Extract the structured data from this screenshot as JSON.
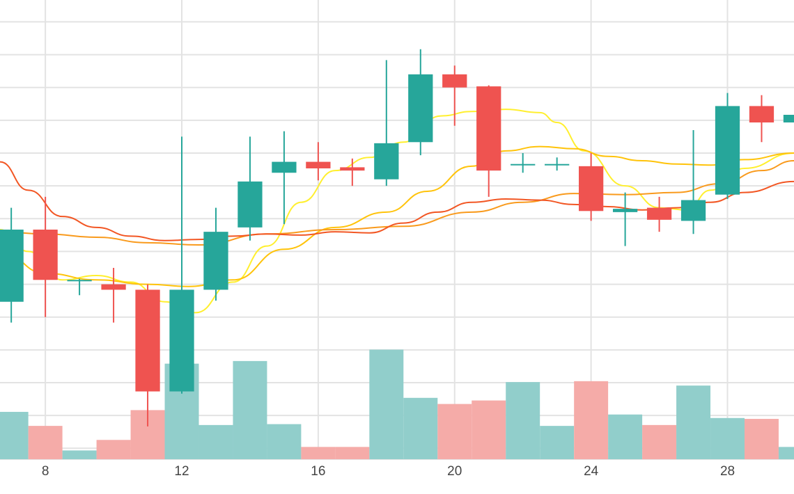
{
  "chart_data": {
    "type": "candlestick",
    "x_ticks": [
      "8",
      "12",
      "16",
      "20",
      "24",
      "28"
    ],
    "x_tick_values": [
      8,
      12,
      16,
      20,
      24,
      28
    ],
    "x_range": [
      6.67,
      29.95
    ],
    "price_range": [
      19.0,
      61.0
    ],
    "volume_range": [
      0,
      100
    ],
    "grid": true,
    "legend": "none",
    "candles": [
      {
        "x": 7,
        "open": 33.4,
        "close": 40.0,
        "high": 42.0,
        "low": 31.5,
        "volume": 54
      },
      {
        "x": 8,
        "open": 40.0,
        "close": 35.4,
        "high": 43.0,
        "low": 32.0,
        "volume": 38
      },
      {
        "x": 9,
        "open": 35.4,
        "close": 35.4,
        "high": 35.5,
        "low": 34.0,
        "volume": 10
      },
      {
        "x": 10,
        "open": 35.0,
        "close": 34.5,
        "high": 36.5,
        "low": 31.5,
        "volume": 22
      },
      {
        "x": 11,
        "open": 34.5,
        "close": 25.2,
        "high": 35.0,
        "low": 22.0,
        "volume": 56
      },
      {
        "x": 12,
        "open": 25.2,
        "close": 34.5,
        "high": 48.5,
        "low": 25.0,
        "volume": 109
      },
      {
        "x": 13,
        "open": 34.5,
        "close": 39.8,
        "high": 42.0,
        "low": 33.5,
        "volume": 39
      },
      {
        "x": 14,
        "open": 40.2,
        "close": 44.4,
        "high": 48.5,
        "low": 39.0,
        "volume": 112
      },
      {
        "x": 15,
        "open": 45.2,
        "close": 46.2,
        "high": 49.0,
        "low": 40.5,
        "volume": 40
      },
      {
        "x": 16,
        "open": 46.2,
        "close": 45.6,
        "high": 48.0,
        "low": 44.5,
        "volume": 14
      },
      {
        "x": 17,
        "open": 45.7,
        "close": 45.4,
        "high": 46.5,
        "low": 44.0,
        "volume": 14
      },
      {
        "x": 18,
        "open": 44.6,
        "close": 47.9,
        "high": 55.5,
        "low": 44.0,
        "volume": 125
      },
      {
        "x": 19,
        "open": 48.0,
        "close": 54.2,
        "high": 56.5,
        "low": 46.8,
        "volume": 70
      },
      {
        "x": 20,
        "open": 54.2,
        "close": 53.0,
        "high": 55.0,
        "low": 49.5,
        "volume": 63
      },
      {
        "x": 21,
        "open": 53.1,
        "close": 45.4,
        "high": 53.2,
        "low": 43.0,
        "volume": 67
      },
      {
        "x": 22,
        "open": 46.0,
        "close": 46.0,
        "high": 47.0,
        "low": 45.2,
        "volume": 88
      },
      {
        "x": 23,
        "open": 46.0,
        "close": 46.0,
        "high": 46.6,
        "low": 45.4,
        "volume": 38
      },
      {
        "x": 24,
        "open": 45.8,
        "close": 41.7,
        "high": 47.0,
        "low": 40.8,
        "volume": 89
      },
      {
        "x": 25,
        "open": 41.6,
        "close": 41.9,
        "high": 43.4,
        "low": 38.5,
        "volume": 51
      },
      {
        "x": 26,
        "open": 42.0,
        "close": 40.9,
        "high": 43.0,
        "low": 39.8,
        "volume": 39
      },
      {
        "x": 27,
        "open": 40.8,
        "close": 42.7,
        "high": 49.1,
        "low": 39.6,
        "volume": 84
      },
      {
        "x": 28,
        "open": 43.2,
        "close": 51.3,
        "high": 52.5,
        "low": 42.8,
        "volume": 47
      },
      {
        "x": 29,
        "open": 51.3,
        "close": 49.8,
        "high": 52.3,
        "low": 48.0,
        "volume": 46
      },
      {
        "x": 30,
        "open": 49.8,
        "close": 50.5,
        "high": 51.8,
        "low": 49.0,
        "volume": 14
      }
    ],
    "moving_averages": [
      {
        "color": "#ffef2e",
        "points": [
          [
            6.67,
            40.0
          ],
          [
            7.5,
            38.0
          ],
          [
            8.5,
            35.4
          ],
          [
            9.5,
            35.8
          ],
          [
            10.5,
            35.2
          ],
          [
            11.5,
            33.4
          ],
          [
            12.4,
            32.4
          ],
          [
            13.5,
            35.2
          ],
          [
            14.5,
            38.5
          ],
          [
            15.5,
            42.5
          ],
          [
            16.5,
            45.4
          ],
          [
            17.5,
            46.6
          ],
          [
            18.5,
            48.0
          ],
          [
            19.6,
            50.4
          ],
          [
            20.5,
            50.8
          ],
          [
            21.5,
            51.0
          ],
          [
            22.5,
            50.7
          ],
          [
            23.0,
            49.8
          ],
          [
            23.8,
            47.2
          ],
          [
            25.0,
            44.0
          ],
          [
            26.0,
            42.0
          ],
          [
            26.8,
            41.8
          ],
          [
            27.5,
            43.6
          ],
          [
            28.5,
            45.6
          ],
          [
            29.95,
            47.0
          ]
        ]
      },
      {
        "color": "#ffc30a",
        "points": [
          [
            6.67,
            38.0
          ],
          [
            8.0,
            36.0
          ],
          [
            9.5,
            35.4
          ],
          [
            11.0,
            35.0
          ],
          [
            12.2,
            34.8
          ],
          [
            13.5,
            35.4
          ],
          [
            15.0,
            38.2
          ],
          [
            16.5,
            40.2
          ],
          [
            18.0,
            41.6
          ],
          [
            19.2,
            43.5
          ],
          [
            20.5,
            45.8
          ],
          [
            21.5,
            47.2
          ],
          [
            22.5,
            47.6
          ],
          [
            23.5,
            47.4
          ],
          [
            24.5,
            46.7
          ],
          [
            25.5,
            46.3
          ],
          [
            26.5,
            46.0
          ],
          [
            27.5,
            45.9
          ],
          [
            28.5,
            46.4
          ],
          [
            29.95,
            47.0
          ]
        ]
      },
      {
        "color": "#f99a1c",
        "points": [
          [
            6.67,
            39.8
          ],
          [
            8.0,
            39.6
          ],
          [
            9.5,
            39.3
          ],
          [
            11.0,
            38.8
          ],
          [
            12.5,
            38.6
          ],
          [
            14.5,
            39.6
          ],
          [
            16.5,
            40.0
          ],
          [
            18.5,
            40.3
          ],
          [
            20.5,
            41.6
          ],
          [
            22.0,
            42.5
          ],
          [
            23.5,
            43.3
          ],
          [
            25.0,
            43.2
          ],
          [
            26.5,
            43.4
          ],
          [
            27.8,
            44.2
          ],
          [
            29.0,
            45.4
          ],
          [
            29.95,
            46.3
          ]
        ]
      },
      {
        "color": "#f25623",
        "points": [
          [
            6.67,
            46.2
          ],
          [
            7.5,
            43.6
          ],
          [
            8.5,
            41.2
          ],
          [
            9.5,
            40.2
          ],
          [
            10.5,
            39.4
          ],
          [
            11.5,
            39.0
          ],
          [
            12.5,
            39.1
          ],
          [
            13.5,
            39.4
          ],
          [
            14.5,
            39.6
          ],
          [
            15.5,
            39.5
          ],
          [
            16.5,
            39.8
          ],
          [
            17.5,
            39.7
          ],
          [
            18.5,
            40.6
          ],
          [
            19.5,
            41.6
          ],
          [
            20.5,
            42.5
          ],
          [
            21.5,
            42.8
          ],
          [
            22.5,
            42.7
          ],
          [
            23.5,
            42.3
          ],
          [
            24.5,
            42.1
          ],
          [
            25.5,
            41.8
          ],
          [
            26.5,
            42.0
          ],
          [
            27.5,
            42.5
          ],
          [
            28.5,
            43.4
          ],
          [
            29.95,
            44.4
          ]
        ]
      }
    ],
    "colors": {
      "up": "#26a69a",
      "down": "#ef5350",
      "volume_up": "#91cecb",
      "volume_down": "#f5aba8",
      "grid": "#e3e3e3",
      "axis_text": "#444444"
    }
  }
}
